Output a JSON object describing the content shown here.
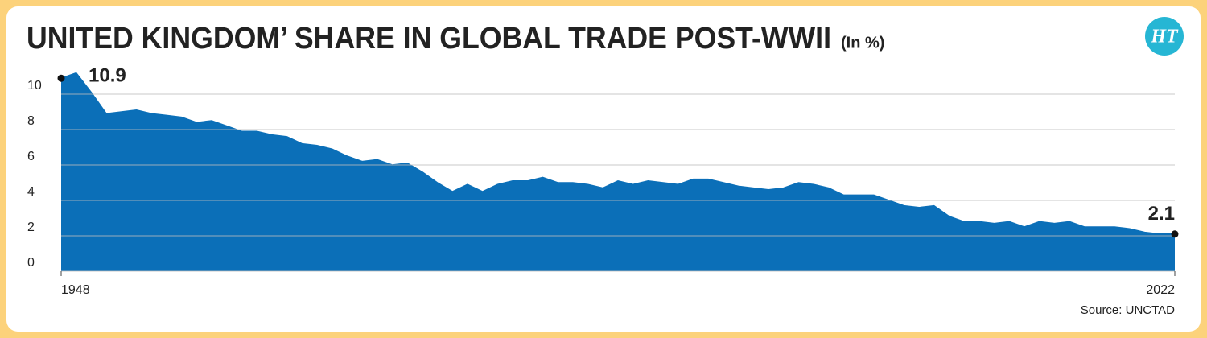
{
  "chart_data": {
    "type": "area",
    "title": "UNITED KINGDOM’ SHARE IN GLOBAL TRADE POST-WWII",
    "subtitle": "(In %)",
    "source": "Source: UNCTAD",
    "logo": "HT",
    "x": [
      1948,
      1949,
      1950,
      1951,
      1952,
      1953,
      1954,
      1955,
      1956,
      1957,
      1958,
      1959,
      1960,
      1961,
      1962,
      1963,
      1964,
      1965,
      1966,
      1967,
      1968,
      1969,
      1970,
      1971,
      1972,
      1973,
      1974,
      1975,
      1976,
      1977,
      1978,
      1979,
      1980,
      1981,
      1982,
      1983,
      1984,
      1985,
      1986,
      1987,
      1988,
      1989,
      1990,
      1991,
      1992,
      1993,
      1994,
      1995,
      1996,
      1997,
      1998,
      1999,
      2000,
      2001,
      2002,
      2003,
      2004,
      2005,
      2006,
      2007,
      2008,
      2009,
      2010,
      2011,
      2012,
      2013,
      2014,
      2015,
      2016,
      2017,
      2018,
      2019,
      2020,
      2021,
      2022
    ],
    "values": [
      10.9,
      11.2,
      10.1,
      8.9,
      9.0,
      9.1,
      8.9,
      8.8,
      8.7,
      8.4,
      8.5,
      8.2,
      7.9,
      7.9,
      7.7,
      7.6,
      7.2,
      7.1,
      6.9,
      6.5,
      6.2,
      6.3,
      6.0,
      6.1,
      5.6,
      5.0,
      4.5,
      4.9,
      4.5,
      4.9,
      5.1,
      5.1,
      5.3,
      5.0,
      5.0,
      4.9,
      4.7,
      5.1,
      4.9,
      5.1,
      5.0,
      4.9,
      5.2,
      5.2,
      5.0,
      4.8,
      4.7,
      4.6,
      4.7,
      5.0,
      4.9,
      4.7,
      4.3,
      4.3,
      4.3,
      4.0,
      3.7,
      3.6,
      3.7,
      3.1,
      2.8,
      2.8,
      2.7,
      2.8,
      2.5,
      2.8,
      2.7,
      2.8,
      2.5,
      2.5,
      2.5,
      2.4,
      2.2,
      2.1,
      2.1
    ],
    "color": "#0b6fb8",
    "data_labels": "ends",
    "xlim": [
      1948,
      2022
    ],
    "xticks": [
      1948,
      2022
    ],
    "ylim": [
      0,
      11.5
    ],
    "yticks": [
      0,
      2,
      4,
      6,
      8,
      10
    ],
    "grid": true
  }
}
